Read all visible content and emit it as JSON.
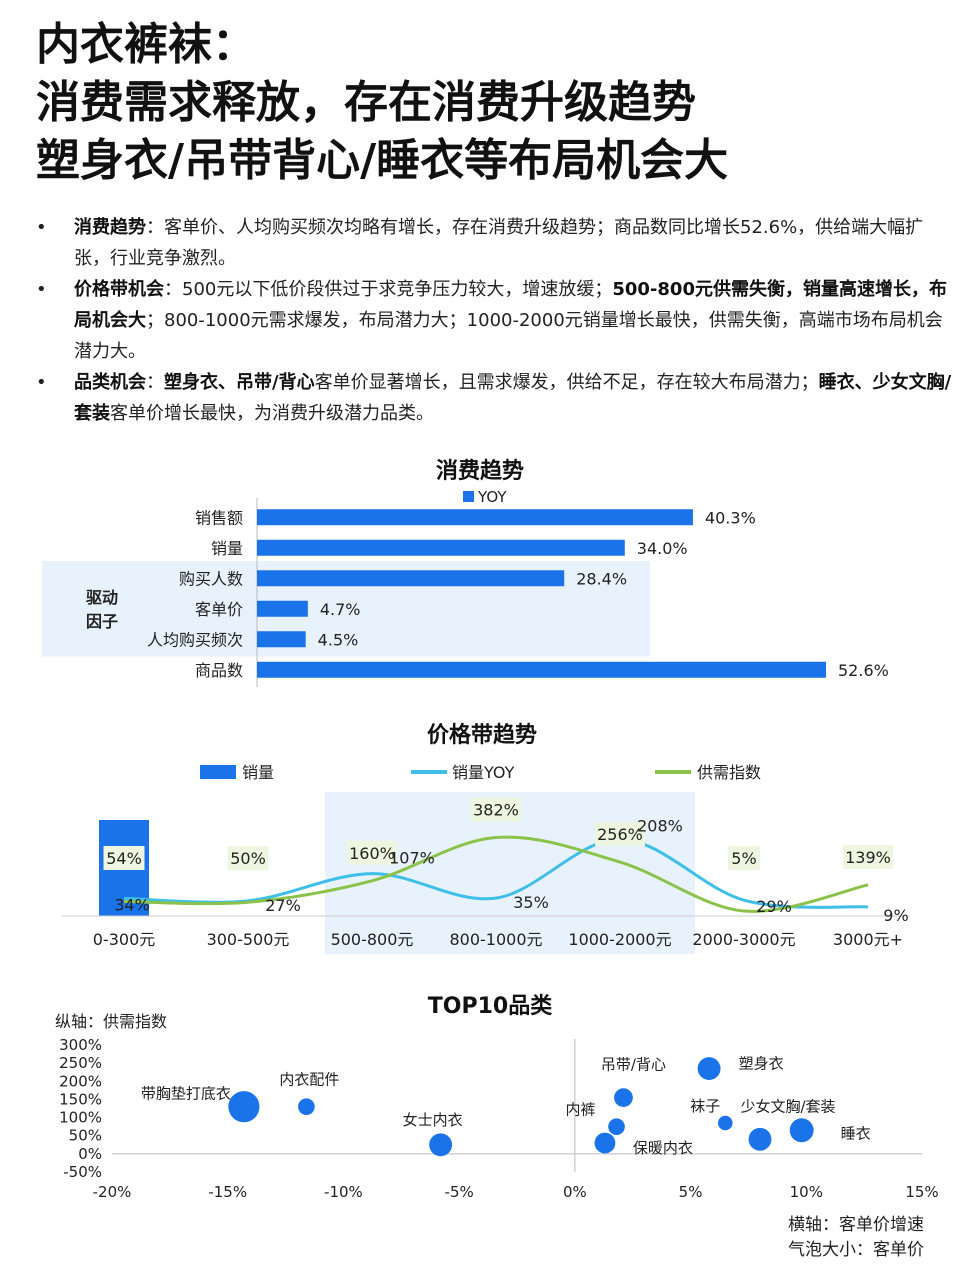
{
  "header": {
    "title_lines": [
      "内衣裤袜：",
      "消费需求释放，存在消费升级趋势",
      "塑身衣/吊带背心/睡衣等布局机会大"
    ]
  },
  "bullets": [
    {
      "label": "消费趋势",
      "parts": [
        {
          "t": "：客单价、人均购买频次均略有增长，存在消费升级趋势；商品数同比增长52.6%，供给端大幅扩张，行业竞争激烈。",
          "b": false
        }
      ]
    },
    {
      "label": "价格带机会",
      "parts": [
        {
          "t": "：500元以下低价段供过于求竞争压力较大，增速放缓；",
          "b": false
        },
        {
          "t": "500-800元供需失衡，销量高速增长，布局机会大",
          "b": true
        },
        {
          "t": "；800-1000元需求爆发，布局潜力大；1000-2000元销量增长最快，供需失衡，高端市场布局机会潜力大。",
          "b": false
        }
      ]
    },
    {
      "label": "品类机会",
      "parts": [
        {
          "t": "：",
          "b": false
        },
        {
          "t": "塑身衣、吊带/背心",
          "b": true
        },
        {
          "t": "客单价显著增长，且需求爆发，供给不足，存在较大布局潜力；",
          "b": false
        },
        {
          "t": "睡衣、少女文胸/套装",
          "b": true
        },
        {
          "t": "客单价增长最快，为消费升级潜力品类。",
          "b": false
        }
      ]
    }
  ],
  "colors": {
    "bar": "#1a73e8",
    "yoy_line": "#3fbfe8",
    "supply_line": "#8bc34a",
    "highlight": "#e8f2fc",
    "bubble": "#1a73e8",
    "label_bg": "#eef6df"
  },
  "chart_data": [
    {
      "type": "bar",
      "orientation": "horizontal",
      "title": "消费趋势",
      "legend": [
        "YOY"
      ],
      "legend_position": "top",
      "categories": [
        "销售额",
        "销量",
        "购买人数",
        "客单价",
        "人均购买频次",
        "商品数"
      ],
      "values": [
        40.3,
        34.0,
        28.4,
        4.7,
        4.5,
        52.6
      ],
      "value_labels": [
        "40.3%",
        "34.0%",
        "28.4%",
        "4.7%",
        "4.5%",
        "52.6%"
      ],
      "xlim": [
        0,
        52.6
      ],
      "group_label": "驱动\n因子",
      "highlighted_categories": [
        "购买人数",
        "客单价",
        "人均购买频次"
      ]
    },
    {
      "type": "bar",
      "title": "价格带趋势",
      "legend": [
        "销量",
        "销量YOY",
        "供需指数"
      ],
      "legend_position": "top",
      "categories": [
        "0-300元",
        "300-500元",
        "500-800元",
        "800-1000元",
        "1000-2000元",
        "2000-3000元",
        "3000元+"
      ],
      "highlighted_categories": [
        "500-800元",
        "800-1000元",
        "1000-2000元"
      ],
      "series": [
        {
          "name": "销量",
          "type": "bar",
          "values": [
            1,
            0,
            0,
            0,
            0,
            0,
            0
          ]
        },
        {
          "name": "销量YOY",
          "type": "line",
          "values": [
            34,
            27,
            107,
            35,
            208,
            29,
            9
          ],
          "labels": [
            "34%",
            "27%",
            "107%",
            "35%",
            "208%",
            "29%",
            "9%"
          ]
        },
        {
          "name": "供需指数",
          "type": "line",
          "values": [
            54,
            50,
            160,
            382,
            256,
            5,
            139
          ],
          "labels": [
            "54%",
            "50%",
            "160%",
            "382%",
            "256%",
            "5%",
            "139%"
          ]
        }
      ]
    },
    {
      "type": "scatter",
      "subtype": "bubble",
      "title": "TOP10品类",
      "ylabel": "纵轴：供需指数",
      "xlabel": "横轴：客单价增速",
      "size_label": "气泡大小：客单价",
      "xlim": [
        -20,
        15
      ],
      "ylim": [
        -50,
        300
      ],
      "xticks": [
        "-20%",
        "-15%",
        "-10%",
        "-5%",
        "0%",
        "5%",
        "10%",
        "15%"
      ],
      "yticks": [
        "300%",
        "250%",
        "200%",
        "150%",
        "100%",
        "50%",
        "0%",
        "-50%"
      ],
      "points": [
        {
          "name": "带胸垫打底衣",
          "x": -14.3,
          "y": 130,
          "size": 3.0
        },
        {
          "name": "内衣配件",
          "x": -11.6,
          "y": 130,
          "size": 1.6
        },
        {
          "name": "女士内衣",
          "x": -5.8,
          "y": 25,
          "size": 2.2
        },
        {
          "name": "吊带/背心",
          "x": 2.1,
          "y": 155,
          "size": 1.8
        },
        {
          "name": "内裤",
          "x": 1.8,
          "y": 75,
          "size": 1.6
        },
        {
          "name": "保暖内衣",
          "x": 1.3,
          "y": 30,
          "size": 2.0
        },
        {
          "name": "塑身衣",
          "x": 5.8,
          "y": 235,
          "size": 2.2
        },
        {
          "name": "袜子",
          "x": 6.5,
          "y": 85,
          "size": 1.4
        },
        {
          "name": "少女文胸/套装",
          "x": 8.0,
          "y": 40,
          "size": 2.2
        },
        {
          "name": "睡衣",
          "x": 9.8,
          "y": 65,
          "size": 2.3
        }
      ]
    }
  ]
}
